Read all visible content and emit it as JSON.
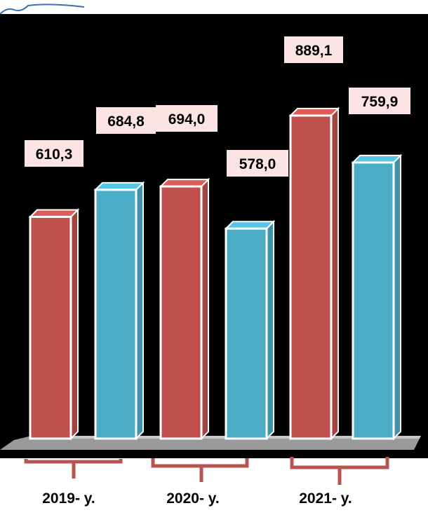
{
  "chart_data": {
    "type": "bar",
    "categories": [
      "2019- y.",
      "2020- y.",
      "2021- y."
    ],
    "series": [
      {
        "values": [
          610.3,
          694.0,
          889.1
        ]
      },
      {
        "values": [
          684.8,
          578.0,
          759.9
        ]
      }
    ],
    "value_labels": [
      [
        "610,3",
        "694,0",
        "889,1"
      ],
      [
        "684,8",
        "578,0",
        "759,9"
      ]
    ],
    "title": "",
    "xlabel": "",
    "ylabel": "",
    "grid": false,
    "legend": "none",
    "colors": {
      "series_a": "#c0504d",
      "series_b": "#4bacc6",
      "background": "#000000",
      "label_box": "#fde4e4",
      "bracket": "#b85450"
    }
  }
}
